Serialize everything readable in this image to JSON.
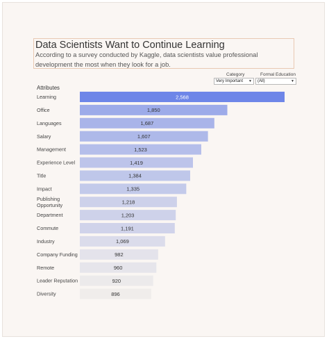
{
  "header": {
    "title": "Data Scientists Want to Continue Learning",
    "subtitle": "According to a survey conducted by Kaggle, data scientists value professional development the most when they look for a job."
  },
  "filters": [
    {
      "label": "Category",
      "value": "Very Important"
    },
    {
      "label": "Formal Education",
      "value": "(All)"
    }
  ],
  "colors": {
    "bar_max": "#6e86e8",
    "bar_min": "#f0edeb",
    "label_on_dark": "#ffffff",
    "label_on_light": "#333333",
    "category_text": "#444444"
  },
  "chart_data": {
    "type": "bar",
    "orientation": "horizontal",
    "column_header": "Attributes",
    "categories": [
      "Learning",
      "Office",
      "Languages",
      "Salary",
      "Management",
      "Experience Level",
      "Title",
      "Impact",
      "Publishing Opportunity",
      "Department",
      "Commute",
      "Industry",
      "Company Funding",
      "Remote",
      "Leader Reputation",
      "Diversity"
    ],
    "values": [
      2568,
      1850,
      1687,
      1607,
      1523,
      1419,
      1384,
      1335,
      1218,
      1203,
      1191,
      1069,
      982,
      960,
      920,
      896
    ],
    "value_labels": [
      "2,568",
      "1,850",
      "1,687",
      "1,607",
      "1,523",
      "1,419",
      "1,384",
      "1,335",
      "1,218",
      "1,203",
      "1,191",
      "1,069",
      "982",
      "960",
      "920",
      "896"
    ],
    "color_scale": "sequential blue by value",
    "xlim": [
      0,
      2568
    ],
    "grid": false,
    "legend": "none"
  }
}
